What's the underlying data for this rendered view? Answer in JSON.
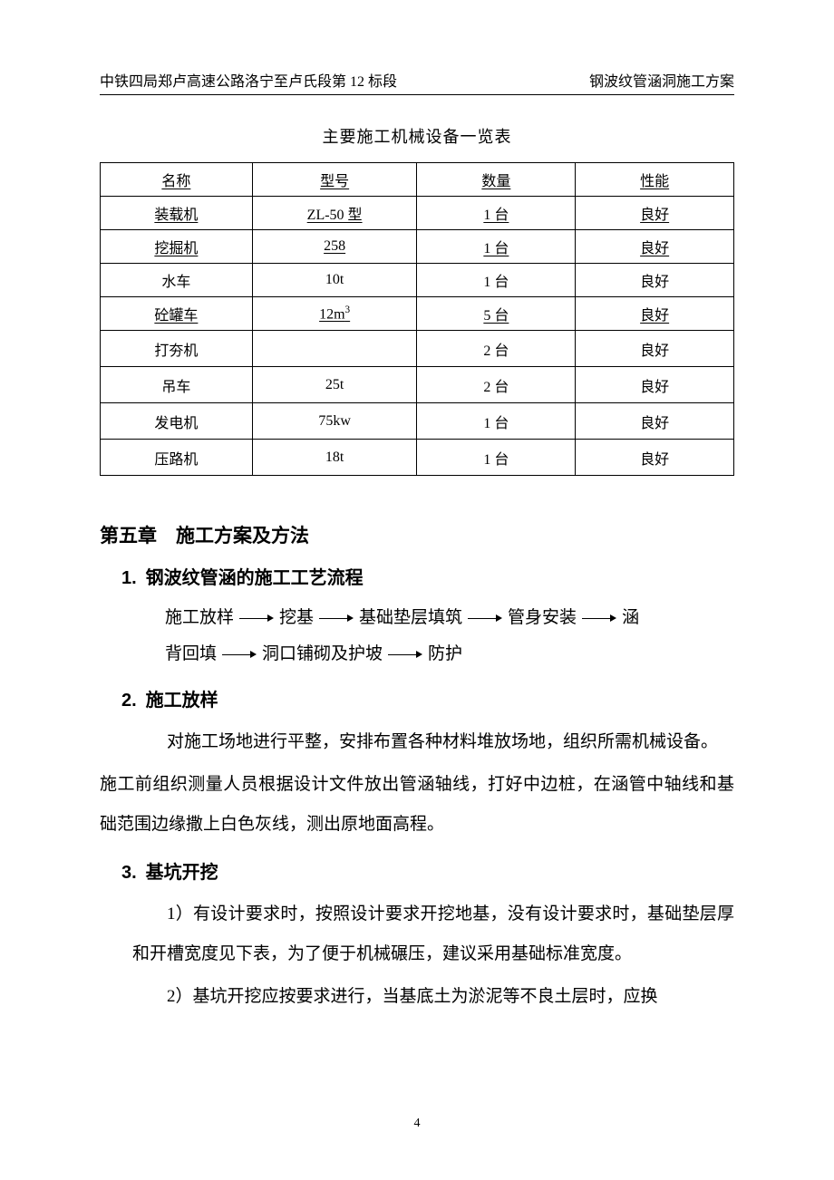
{
  "header": {
    "left": "中铁四局郑卢高速公路洛宁至卢氏段第 12 标段",
    "right": "钢波纹管涵洞施工方案"
  },
  "table_title": "主要施工机械设备一览表",
  "table": {
    "columns": [
      "名称",
      "型号",
      "数量",
      "性能"
    ],
    "rows": [
      {
        "cells": [
          "装载机",
          "ZL-50 型",
          "1 台",
          "良好"
        ],
        "underline": true,
        "taller": false
      },
      {
        "cells": [
          "挖掘机",
          "258",
          "1 台",
          "良好"
        ],
        "underline": true,
        "taller": false
      },
      {
        "cells": [
          "水车",
          "10t",
          "1 台",
          "良好"
        ],
        "underline": false,
        "taller": false
      },
      {
        "cells": [
          "砼罐车",
          "12m³",
          "5 台",
          "良好"
        ],
        "underline": true,
        "taller": false
      },
      {
        "cells": [
          "打夯机",
          "",
          "2 台",
          "良好"
        ],
        "underline": false,
        "taller": true
      },
      {
        "cells": [
          "吊车",
          "25t",
          "2 台",
          "良好"
        ],
        "underline": false,
        "taller": true
      },
      {
        "cells": [
          "发电机",
          "75kw",
          "1 台",
          "良好"
        ],
        "underline": false,
        "taller": true
      },
      {
        "cells": [
          "压路机",
          "18t",
          "1 台",
          "良好"
        ],
        "underline": false,
        "taller": true
      }
    ],
    "header_underline": true
  },
  "chapter": "第五章 施工方案及方法",
  "sections": {
    "s1": {
      "heading": "1. 钢波纹管涵的施工工艺流程",
      "flow1": [
        "施工放样",
        "挖基",
        "基础垫层填筑",
        "管身安装",
        "涵"
      ],
      "flow2_prefix": "背回填",
      "flow2": [
        "洞口铺砌及护坡",
        "防护"
      ]
    },
    "s2": {
      "heading": "2. 施工放样",
      "p1": "对施工场地进行平整，安排布置各种材料堆放场地，组织所需机械设备。",
      "p2": "施工前组织测量人员根据设计文件放出管涵轴线，打好中边桩，在涵管中轴线和基础范围边缘撒上白色灰线，测出原地面高程。"
    },
    "s3": {
      "heading": "3. 基坑开挖",
      "p1": "1）有设计要求时，按照设计要求开挖地基，没有设计要求时，基础垫层厚和开槽宽度见下表，为了便于机械碾压，建议采用基础标准宽度。",
      "p2": "2）基坑开挖应按要求进行，当基底土为淤泥等不良土层时，应换"
    }
  },
  "page_number": "4"
}
